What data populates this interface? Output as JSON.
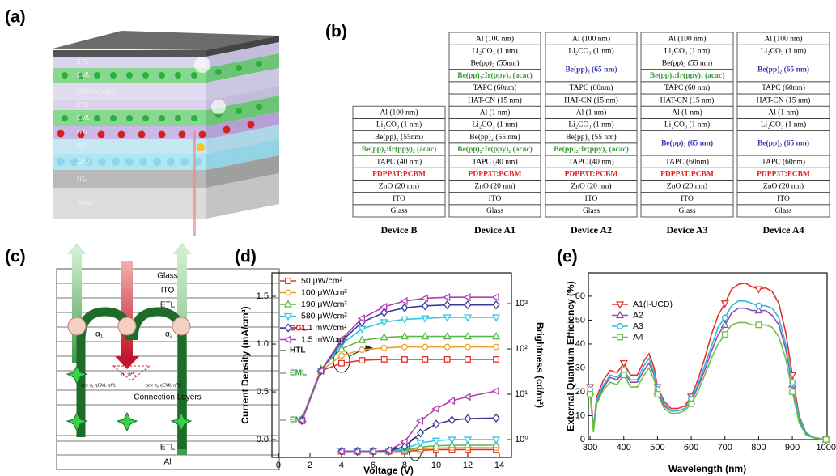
{
  "panel_labels": [
    "(a)",
    "(b)",
    "(c)",
    "(d)",
    "(e)"
  ],
  "panel_a": {
    "layers": [
      "ETL",
      "EML",
      "Connect layer",
      "ETL",
      "EML",
      "HTL",
      "PD",
      "ZnO",
      "ITO",
      "Glass"
    ]
  },
  "panel_b": {
    "devices": [
      {
        "name": "Device B",
        "layers": [
          {
            "text": "Al (100 nm)"
          },
          {
            "text": "Li₂CO₃ (1 nm)"
          },
          {
            "text": "Be(pp)₂ (55nm)"
          },
          {
            "text": "Be(pp)₂:Ir(ppy)₂ (acac)",
            "color": "#3a9a3a"
          },
          {
            "text": "TAPC (40 nm)"
          },
          {
            "text": "PDPP3T:PCBM",
            "color": "#e02020"
          },
          {
            "text": "ZnO (20 nm)"
          },
          {
            "text": "ITO"
          },
          {
            "text": "Glass"
          }
        ]
      },
      {
        "name": "Device A1",
        "layers": [
          {
            "text": "Al (100 nm)"
          },
          {
            "text": "Li₂CO₃ (1 nm)"
          },
          {
            "text": "Be(pp)₂ (55nm)"
          },
          {
            "text": "Be(pp)₂:Ir(ppy)₂ (acac)",
            "color": "#3a9a3a"
          },
          {
            "text": "TAPC (60nm)"
          },
          {
            "text": "HAT-CN (15 nm)"
          },
          {
            "text": "Al (1 nm)"
          },
          {
            "text": "Li₂CO₃ (1 nm)"
          },
          {
            "text": "Be(pp)₂ (55 nm)"
          },
          {
            "text": "Be(pp)₂:Ir(ppy)₂ (acac)",
            "color": "#3a9a3a"
          },
          {
            "text": "TAPC (40 nm)"
          },
          {
            "text": "PDPP3T:PCBM",
            "color": "#e02020"
          },
          {
            "text": "ZnO (20 nm)"
          },
          {
            "text": "ITO"
          },
          {
            "text": "Glass"
          }
        ]
      },
      {
        "name": "Device A2",
        "layers": [
          {
            "text": "Al (100 nm)"
          },
          {
            "text": "Li₂CO₃ (1 nm)"
          },
          {
            "text": "Be(pp)₂ (65 nm)",
            "color": "#3b3bb0",
            "rowspan": 2
          },
          {
            "text": "TAPC (60nm)"
          },
          {
            "text": "HAT-CN (15 nm)"
          },
          {
            "text": "Al (1 nm)"
          },
          {
            "text": "Li₂CO₃ (1 nm)"
          },
          {
            "text": "Be(pp)₂ (55 nm)"
          },
          {
            "text": "Be(pp)₂:Ir(ppy)₂ (acac)",
            "color": "#3a9a3a"
          },
          {
            "text": "TAPC (40 nm)"
          },
          {
            "text": "PDPP3T:PCBM",
            "color": "#e02020"
          },
          {
            "text": "ZnO (20 nm)"
          },
          {
            "text": "ITO"
          },
          {
            "text": "Glass"
          }
        ]
      },
      {
        "name": "Device A3",
        "layers": [
          {
            "text": "Al (100 nm)"
          },
          {
            "text": "Li₂CO₃ (1 nm)"
          },
          {
            "text": "Be(pp)₂ (55 nm)"
          },
          {
            "text": "Be(pp)₂:Ir(ppy)₂ (acac)",
            "color": "#3a9a3a"
          },
          {
            "text": "TAPC (60 nm)"
          },
          {
            "text": "HAT-CN (15 nm)"
          },
          {
            "text": "Al (1 nm)"
          },
          {
            "text": "Li₂CO₃ (1 nm)"
          },
          {
            "text": "Be(pp)₂ (65 nm)",
            "color": "#3b3bb0",
            "rowspan": 2
          },
          {
            "text": "TAPC (60nm)"
          },
          {
            "text": "PDPP3T:PCBM",
            "color": "#e02020"
          },
          {
            "text": "ZnO (20 nm)"
          },
          {
            "text": "ITO"
          },
          {
            "text": "Glass"
          }
        ]
      },
      {
        "name": "Device A4",
        "layers": [
          {
            "text": "Al (100 nm)"
          },
          {
            "text": "Li₂CO₃ (1 nm)"
          },
          {
            "text": "Be(pp)₂ (65 nm)",
            "color": "#3b3bb0",
            "rowspan": 2
          },
          {
            "text": "TAPC (60nm)"
          },
          {
            "text": "HAT-CN (15 nm)"
          },
          {
            "text": "Al (1 nm)"
          },
          {
            "text": "Li₂CO₃ (1 nm)"
          },
          {
            "text": "Be(pp)₂ (65 nm)",
            "color": "#3b3bb0",
            "rowspan": 2
          },
          {
            "text": "TAPC (60nm)"
          },
          {
            "text": "PDPP3T:PCBM",
            "color": "#e02020"
          },
          {
            "text": "ZnO (20 nm)"
          },
          {
            "text": "ITO"
          },
          {
            "text": "Glass"
          }
        ]
      }
    ]
  },
  "panel_c": {
    "layers": [
      "Glass",
      "ITO",
      "ETL",
      "Connection Layers",
      "ETL",
      "Al"
    ],
    "side_labels": [
      {
        "text": "CGL",
        "color": "#e02020"
      },
      {
        "text": "HTL",
        "color": "#222222"
      },
      {
        "text": "EML",
        "color": "#2a9a3a"
      },
      {
        "text": "EML",
        "color": "#2a9a3a"
      }
    ],
    "symbols": [
      "α₁",
      "α₂"
    ],
    "formulas": [
      "ηT·ηPL",
      "ηex·α₁·ηEML·ηPL",
      "ηex·α₂·ηEML·ηPL"
    ]
  },
  "chart_data": [
    {
      "type": "line",
      "xlabel": "Voltage (V)",
      "ylabel": "Current Density (mA/cm²)",
      "y2label": "Brightness (cd/m²)",
      "xlim": [
        -0.41,
        14.77
      ],
      "xticks": [
        0,
        2,
        4,
        6,
        8,
        10,
        12,
        14
      ],
      "ylim": [
        -0.186,
        1.746
      ],
      "yticks": [
        {
          "value": 0,
          "label": "0.0"
        },
        {
          "value": 0.5,
          "label": "0.5"
        },
        {
          "value": 1,
          "label": "1.0"
        },
        {
          "value": 1.5,
          "label": "1.5"
        }
      ],
      "y2lim": [
        0.405,
        4786
      ],
      "y2scale": "log",
      "y2ticks": [
        {
          "value": 1,
          "label": "10⁰"
        },
        {
          "value": 10,
          "label": "10¹"
        },
        {
          "value": 100,
          "label": "10²"
        },
        {
          "value": 1000,
          "label": "10³"
        }
      ],
      "legend": "upper left",
      "series": [
        {
          "name": "50 μW/cm²",
          "color": "#e8302a",
          "marker": "square",
          "x": [
            1.5,
            2.7,
            4,
            5.3,
            6.7,
            8,
            9.3,
            10.7,
            12,
            13.8
          ],
          "values": [
            0.2,
            0.72,
            0.8,
            0.83,
            0.84,
            0.84,
            0.84,
            0.84,
            0.84,
            0.84
          ]
        },
        {
          "name": "100 μW/cm²",
          "color": "#f0a020",
          "marker": "circle",
          "x": [
            1.5,
            2.7,
            4,
            5.3,
            6.7,
            8,
            9.3,
            10.7,
            12,
            13.8
          ],
          "values": [
            0.2,
            0.72,
            0.88,
            0.94,
            0.96,
            0.97,
            0.97,
            0.97,
            0.97,
            0.97
          ]
        },
        {
          "name": "190 μW/cm²",
          "color": "#5cb84a",
          "marker": "triangle-up",
          "x": [
            1.5,
            2.7,
            4,
            5.3,
            6.7,
            8,
            9.3,
            10.7,
            12,
            13.8
          ],
          "values": [
            0.22,
            0.74,
            0.95,
            1.04,
            1.07,
            1.08,
            1.08,
            1.08,
            1.08,
            1.08
          ]
        },
        {
          "name": "580 μW/cm²",
          "color": "#30c8e0",
          "marker": "triangle-down",
          "x": [
            1.5,
            2.7,
            4,
            5.3,
            6.7,
            8,
            9.3,
            10.7,
            12,
            13.8
          ],
          "values": [
            0.2,
            0.72,
            1.0,
            1.16,
            1.23,
            1.26,
            1.27,
            1.28,
            1.28,
            1.28
          ]
        },
        {
          "name": "1.1 mW/cm²",
          "color": "#3a3a9a",
          "marker": "diamond",
          "x": [
            1.5,
            2.7,
            4,
            5.3,
            6.7,
            8,
            9.3,
            10.7,
            12,
            13.8
          ],
          "values": [
            0.2,
            0.72,
            1.03,
            1.23,
            1.33,
            1.38,
            1.4,
            1.41,
            1.41,
            1.41
          ]
        },
        {
          "name": "1.5 mW/cm²",
          "color": "#b040b0",
          "marker": "triangle-left",
          "x": [
            1.5,
            2.7,
            4,
            5.3,
            6.7,
            8,
            9.3,
            10.7,
            12,
            13.8
          ],
          "values": [
            0.2,
            0.72,
            1.05,
            1.27,
            1.39,
            1.45,
            1.48,
            1.49,
            1.49,
            1.49
          ]
        },
        {
          "axis": "y2",
          "color": "#e8302a",
          "marker": "square",
          "x": [
            4,
            5,
            6,
            7,
            8,
            9,
            10,
            11,
            12,
            13.8
          ],
          "values": [
            0.55,
            0.55,
            0.55,
            0.55,
            0.55,
            0.58,
            0.6,
            0.6,
            0.6,
            0.6
          ]
        },
        {
          "axis": "y2",
          "color": "#f0a020",
          "marker": "circle",
          "x": [
            4,
            5,
            6,
            7,
            8,
            9,
            10,
            11,
            12,
            13.8
          ],
          "values": [
            0.55,
            0.55,
            0.55,
            0.55,
            0.57,
            0.62,
            0.65,
            0.66,
            0.66,
            0.66
          ]
        },
        {
          "axis": "y2",
          "color": "#5cb84a",
          "marker": "triangle-up",
          "x": [
            4,
            5,
            6,
            7,
            8,
            9,
            10,
            11,
            12,
            13.8
          ],
          "values": [
            0.55,
            0.55,
            0.55,
            0.55,
            0.58,
            0.68,
            0.73,
            0.75,
            0.75,
            0.75
          ]
        },
        {
          "axis": "y2",
          "color": "#30c8e0",
          "marker": "triangle-down",
          "x": [
            4,
            5,
            6,
            7,
            8,
            9,
            10,
            11,
            12,
            13.8
          ],
          "values": [
            0.55,
            0.55,
            0.55,
            0.56,
            0.62,
            0.85,
            0.95,
            1.0,
            1.0,
            1.0
          ]
        },
        {
          "axis": "y2",
          "color": "#3a3a9a",
          "marker": "diamond",
          "x": [
            4,
            5,
            6,
            7,
            8,
            9,
            10,
            11,
            12,
            13.8
          ],
          "values": [
            0.55,
            0.55,
            0.55,
            0.56,
            0.7,
            1.4,
            2.2,
            2.7,
            2.9,
            3.0
          ]
        },
        {
          "axis": "y2",
          "color": "#b040b0",
          "marker": "triangle-left",
          "x": [
            4,
            5,
            6,
            7,
            8,
            9,
            10,
            11,
            12,
            13.8
          ],
          "values": [
            0.55,
            0.55,
            0.55,
            0.58,
            0.9,
            2.6,
            4.8,
            7.2,
            8.8,
            11.8
          ]
        }
      ]
    },
    {
      "type": "line",
      "xlabel": "Wavelength (nm)",
      "ylabel": "External Quantum Efficiency (%)",
      "x": [
        300,
        310,
        320,
        340,
        360,
        380,
        400,
        420,
        440,
        460,
        475,
        490,
        500,
        520,
        540,
        560,
        580,
        600,
        620,
        640,
        660,
        680,
        700,
        720,
        740,
        760,
        780,
        800,
        820,
        840,
        860,
        880,
        900,
        920,
        940,
        960,
        980,
        1000
      ],
      "xlim": [
        295,
        1003
      ],
      "xticks": [
        300,
        400,
        500,
        600,
        700,
        800,
        900,
        1000
      ],
      "ylim": [
        0,
        69.8
      ],
      "yticks": [
        0,
        10,
        20,
        30,
        40,
        50,
        60
      ],
      "legend": "upper left",
      "series": [
        {
          "name": "A1(I-UCD)",
          "color": "#e8302a",
          "marker": "triangle-down",
          "values": [
            22,
            5,
            18,
            25,
            29,
            28,
            32,
            27,
            27,
            33,
            36,
            30,
            22,
            16,
            13,
            13,
            14,
            18,
            25,
            34,
            44,
            52,
            57,
            63,
            65,
            65.5,
            64,
            63,
            63.5,
            62,
            57,
            45,
            27,
            10,
            3,
            1,
            0.5,
            0
          ]
        },
        {
          "name": "A2",
          "color": "#8a50b0",
          "marker": "triangle-up",
          "values": [
            20,
            4,
            16,
            22,
            26,
            25,
            28,
            24,
            24,
            29,
            32,
            27,
            20,
            14,
            12,
            12,
            13,
            16,
            22,
            29,
            37,
            44,
            48,
            53,
            55,
            55,
            54,
            54,
            54,
            52,
            48,
            38,
            23,
            8,
            2.5,
            1,
            0.4,
            0
          ]
        },
        {
          "name": "A3",
          "color": "#30b8e0",
          "marker": "circle",
          "values": [
            21,
            4,
            17,
            23,
            27,
            26,
            29,
            25,
            25,
            31,
            34,
            28,
            21,
            15,
            12,
            12,
            13,
            17,
            23,
            31,
            39,
            47,
            51,
            56,
            58,
            58,
            57,
            56,
            56,
            55,
            51,
            40,
            24,
            9,
            3,
            1,
            0.4,
            0
          ]
        },
        {
          "name": "A4",
          "color": "#70c040",
          "marker": "square",
          "values": [
            19,
            3,
            15,
            21,
            24,
            23,
            27,
            22,
            22,
            27,
            30,
            25,
            19,
            13,
            11,
            11,
            12,
            15,
            20,
            27,
            34,
            40,
            44,
            48,
            49,
            49,
            48,
            48,
            48,
            47,
            43,
            34,
            20,
            7,
            2,
            0.8,
            0.3,
            0
          ]
        }
      ]
    }
  ]
}
